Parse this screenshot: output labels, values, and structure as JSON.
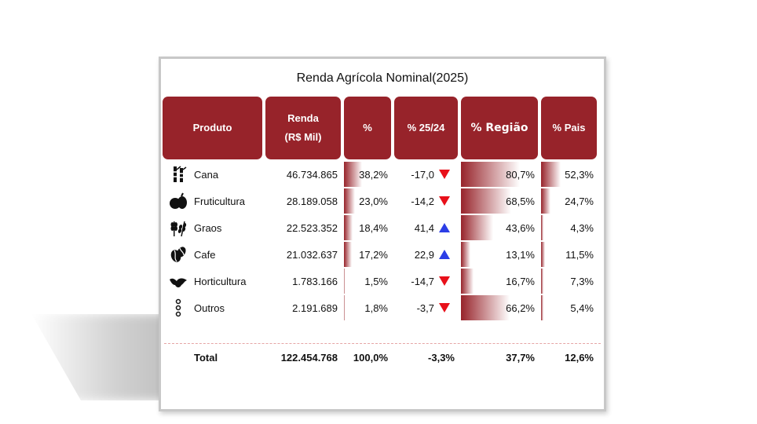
{
  "title": "Renda Agrícola Nominal(2025)",
  "headers": {
    "produto": "Produto",
    "renda": "Renda (R$ Mil)",
    "pct": "%",
    "var": "% 25/24",
    "regiao": "% Região",
    "pais": "% Pais"
  },
  "colors": {
    "header": "#97232a",
    "down": "#e8101a",
    "up": "#2c3ee6"
  },
  "rows": [
    {
      "icon": "sugarcane-icon",
      "produto": "Cana",
      "renda": "46.734.865",
      "pct": "38,2%",
      "pct_v": 38.2,
      "var": "-17,0",
      "dir": "down",
      "regiao": "80,7%",
      "regiao_v": 80.7,
      "pais": "52,3%",
      "pais_v": 52.3
    },
    {
      "icon": "fruit-icon",
      "produto": "Fruticultura",
      "renda": "28.189.058",
      "pct": "23,0%",
      "pct_v": 23.0,
      "var": "-14,2",
      "dir": "down",
      "regiao": "68,5%",
      "regiao_v": 68.5,
      "pais": "24,7%",
      "pais_v": 24.7
    },
    {
      "icon": "wheat-icon",
      "produto": "Graos",
      "renda": "22.523.352",
      "pct": "18,4%",
      "pct_v": 18.4,
      "var": "41,4",
      "dir": "up",
      "regiao": "43,6%",
      "regiao_v": 43.6,
      "pais": "4,3%",
      "pais_v": 4.3
    },
    {
      "icon": "coffee-bean-icon",
      "produto": "Cafe",
      "renda": "21.032.637",
      "pct": "17,2%",
      "pct_v": 17.2,
      "var": "22,9",
      "dir": "up",
      "regiao": "13,1%",
      "regiao_v": 13.1,
      "pais": "11,5%",
      "pais_v": 11.5
    },
    {
      "icon": "lettuce-icon",
      "produto": "Horticultura",
      "renda": "1.783.166",
      "pct": "1,5%",
      "pct_v": 1.5,
      "var": "-14,7",
      "dir": "down",
      "regiao": "16,7%",
      "regiao_v": 16.7,
      "pais": "7,3%",
      "pais_v": 7.3
    },
    {
      "icon": "more-icon",
      "produto": "Outros",
      "renda": "2.191.689",
      "pct": "1,8%",
      "pct_v": 1.8,
      "var": "-3,7",
      "dir": "down",
      "regiao": "66,2%",
      "regiao_v": 66.2,
      "pais": "5,4%",
      "pais_v": 5.4
    }
  ],
  "total": {
    "produto": "Total",
    "renda": "122.454.768",
    "pct": "100,0%",
    "var": "-3,3%",
    "regiao": "37,7%",
    "pais": "12,6%"
  }
}
